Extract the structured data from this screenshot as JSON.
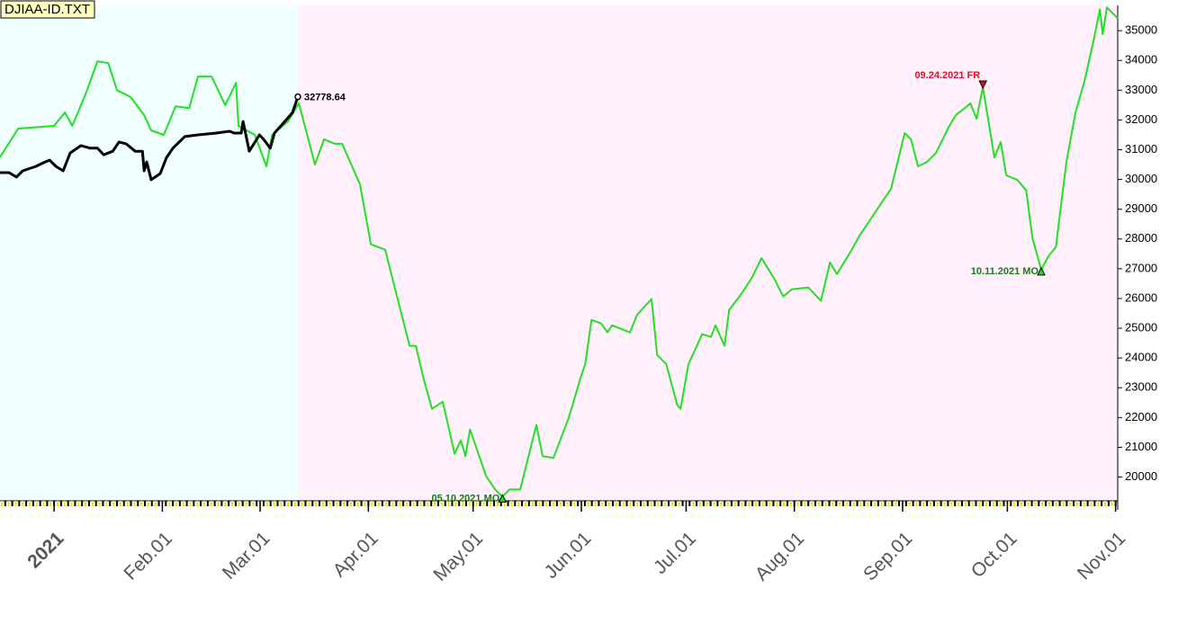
{
  "chart_data": {
    "type": "line",
    "title": "DJIAA-ID.TXT",
    "xlim": [
      -15.5,
      304.6
    ],
    "ylim": [
      19200,
      35850
    ],
    "xticks": [
      {
        "value": 0,
        "label": "2021"
      },
      {
        "value": 31,
        "label": "Feb.01"
      },
      {
        "value": 59,
        "label": "Mar.01"
      },
      {
        "value": 90,
        "label": "Apr.01"
      },
      {
        "value": 120,
        "label": "May.01"
      },
      {
        "value": 151,
        "label": "Jun.01"
      },
      {
        "value": 181,
        "label": "Jul.01"
      },
      {
        "value": 212,
        "label": "Aug.01"
      },
      {
        "value": 243,
        "label": "Sep.01"
      },
      {
        "value": 273,
        "label": "Oct.01"
      },
      {
        "value": 304,
        "label": "Nov.01"
      }
    ],
    "yticks": [
      20000,
      21000,
      22000,
      23000,
      24000,
      25000,
      26000,
      27000,
      28000,
      29000,
      30000,
      31000,
      32000,
      33000,
      34000,
      35000
    ],
    "grid": false,
    "series": [
      {
        "color": "#22e022",
        "x": [
          -15.5,
          -10.3,
          0,
          3.1,
          5.2,
          9.0,
          12.4,
          15.5,
          18.0,
          21.9,
          25.8,
          27.8,
          31.4,
          34.8,
          38.7,
          41.2,
          45.1,
          49.0,
          52.1,
          52.8,
          57.5,
          60.8,
          62.4,
          67.0,
          70.1,
          74.7,
          77.3,
          80.4,
          82.5,
          87.6,
          90.7,
          94.8,
          101.8,
          103.6,
          105.7,
          108.2,
          111.3,
          114.7,
          116.5,
          117.8,
          119.1,
          123.7,
          126.3,
          128.4,
          130.4,
          133.5,
          138.1,
          139.9,
          143.0,
          147.4,
          150.8,
          152.1,
          153.9,
          156.7,
          158.5,
          159.8,
          164.9,
          167.0,
          171.1,
          172.7,
          175.3,
          178.4,
          179.4,
          181.7,
          185.6,
          188.1,
          189.4,
          192.0,
          193.3,
          197.2,
          199.7,
          202.6,
          206.2,
          208.8,
          211.3,
          216.0,
          219.6,
          222.2,
          224.2,
          228.1,
          230.7,
          234.5,
          237.1,
          239.7,
          243.6,
          245.4,
          247.4,
          250.0,
          252.6,
          256.4,
          258.2,
          260.8,
          262.4,
          264.2,
          266.0,
          269.3,
          271.1,
          272.7,
          275.8,
          278.4,
          280.2,
          282.7,
          284.8,
          286.9,
          289.9,
          292.5,
          295.1,
          297.7,
          299.5,
          300.3,
          301.5,
          304.6
        ],
        "values": [
          30745,
          31710,
          31800,
          32250,
          31800,
          32860,
          33970,
          33910,
          33000,
          32770,
          32160,
          31650,
          31500,
          32460,
          32400,
          33460,
          33460,
          32500,
          33250,
          31800,
          31500,
          30440,
          31500,
          31950,
          32560,
          30500,
          31350,
          31200,
          31200,
          29840,
          27820,
          27640,
          24410,
          24410,
          23350,
          22290,
          22530,
          20780,
          21240,
          20700,
          21600,
          20030,
          19580,
          19340,
          19580,
          19580,
          21750,
          20700,
          20640,
          22000,
          23350,
          23800,
          25280,
          25160,
          24860,
          25100,
          24860,
          25460,
          25980,
          24100,
          23800,
          22440,
          22290,
          23800,
          24800,
          24710,
          25100,
          24410,
          25610,
          26220,
          26670,
          27360,
          26670,
          26070,
          26310,
          26370,
          25920,
          27210,
          26820,
          27570,
          28120,
          28780,
          29240,
          29690,
          31560,
          31350,
          30440,
          30590,
          30900,
          31800,
          32160,
          32400,
          32560,
          32040,
          33100,
          30740,
          31260,
          30140,
          29990,
          29630,
          28030,
          26970,
          27430,
          27730,
          30590,
          32250,
          33310,
          34670,
          35720,
          34880,
          35780,
          35420
        ]
      },
      {
        "color": "#000000",
        "x": [
          -15.5,
          -12.9,
          -10.8,
          -9.0,
          -5.2,
          -2.6,
          -1.3,
          0.5,
          2.6,
          4.6,
          7.7,
          10.3,
          12.4,
          14.2,
          16.8,
          18.6,
          20.6,
          23.2,
          25.3,
          25.8,
          26.5,
          27.8,
          30.4,
          32.2,
          34.0,
          37.4,
          41.2,
          46.4,
          50.3,
          51.5,
          53.6,
          54.1,
          55.9,
          58.8,
          60.0,
          61.9,
          63.1,
          66.5,
          68.3,
          69.8
        ],
        "values": [
          30230,
          30230,
          30080,
          30290,
          30440,
          30590,
          30650,
          30440,
          30290,
          30890,
          31140,
          31050,
          31050,
          30830,
          30950,
          31260,
          31200,
          30950,
          30950,
          30290,
          30590,
          29990,
          30200,
          30740,
          31050,
          31440,
          31500,
          31560,
          31620,
          31560,
          31560,
          31950,
          30950,
          31500,
          31350,
          31050,
          31560,
          32010,
          32250,
          32778.64
        ]
      }
    ],
    "annotations": [
      {
        "text": "32778.64",
        "x": 69.8,
        "y": 32778.64,
        "color": "#000000",
        "marker": "circle"
      },
      {
        "text": "05.10.2021 MO",
        "x": 128.4,
        "y": 19340,
        "color": "#1a7a1a",
        "marker": "up"
      },
      {
        "text": "09.24.2021 FR",
        "x": 266.0,
        "y": 33100,
        "color": "#e0102a",
        "marker": "down"
      },
      {
        "text": "10.11.2021 MO",
        "x": 282.7,
        "y": 26970,
        "color": "#1a7a1a",
        "marker": "up"
      }
    ]
  }
}
